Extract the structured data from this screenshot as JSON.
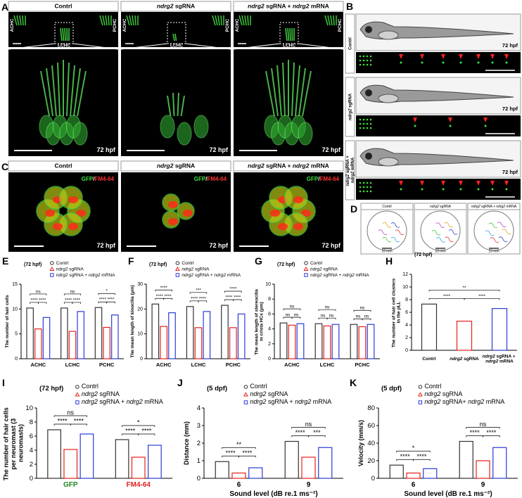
{
  "panels": {
    "A": {
      "letter": "A",
      "columns": [
        "Contrl",
        "ndrg2 sgRNA",
        "ndrg2 sgRNA + ndrg2 mRNA"
      ],
      "labels": [
        "ACHC",
        "PCHC",
        "LCHC"
      ],
      "time": "72 hpf"
    },
    "B": {
      "letter": "B",
      "rows": [
        "Contrl",
        "ndrg2 sgRNA",
        "ndrg2 sgRNA + ndrg2 mRNA"
      ],
      "time": "72 hpf"
    },
    "C": {
      "letter": "C",
      "columns": [
        "Contrl",
        "ndrg2 sgRNA",
        "ndrg2 sgRNA + ndrg2 mRNA"
      ],
      "stain": "GFP/FM4-64",
      "stain_colors": [
        "#3ee03e",
        "#ff3030"
      ],
      "time": "72 hpf"
    },
    "D": {
      "letter": "D",
      "columns": [
        "Contrl",
        "ndrg2 sgRNA",
        "ndrg2 sgRNA + ndrg2 mRNA"
      ],
      "scale": "10 mm"
    }
  },
  "chart_data": [
    {
      "type": "bar",
      "panel": "E",
      "title": "(72 hpf)",
      "ylabel": "The number of hair cells",
      "categories": [
        "ACHC",
        "LCHC",
        "PCHC"
      ],
      "series": [
        {
          "name": "Contrl",
          "color": "#333333",
          "marker": "circle",
          "values": [
            10.2,
            10.2,
            10.3
          ]
        },
        {
          "name": "ndrg2 sgRNA",
          "color": "#e8201a",
          "marker": "triangle",
          "values": [
            6,
            5.5,
            6.3
          ]
        },
        {
          "name": "ndrg2 sgRNA + ndrg2 mRNA",
          "color": "#2a3bd8",
          "marker": "square",
          "values": [
            8.3,
            9.5,
            8.8
          ]
        }
      ],
      "ylim": [
        0,
        15
      ],
      "yticks": [
        0,
        5,
        10,
        15
      ],
      "significance": [
        [
          "****",
          "****",
          "ns"
        ],
        [
          "****",
          "****",
          "ns"
        ],
        [
          "****",
          "****",
          "*"
        ]
      ]
    },
    {
      "type": "bar",
      "panel": "F",
      "title": "(72 hpf)",
      "ylabel": "The mean length of kinocilia (μm)",
      "categories": [
        "ACHC",
        "LCHC",
        "PCHC"
      ],
      "series": [
        {
          "name": "Contrl",
          "color": "#333333",
          "marker": "circle",
          "values": [
            22,
            21,
            21.5
          ]
        },
        {
          "name": "ndrg2 sgRNA",
          "color": "#e8201a",
          "marker": "triangle",
          "values": [
            13,
            12.5,
            12.5
          ]
        },
        {
          "name": "ndrg2 sgRNA + ndrg2 mRNA",
          "color": "#2a3bd8",
          "marker": "square",
          "values": [
            18.5,
            19,
            18
          ]
        }
      ],
      "ylim": [
        0,
        30
      ],
      "yticks": [
        0,
        10,
        20,
        30
      ],
      "significance": [
        [
          "****",
          "****",
          "****"
        ],
        [
          "****",
          "****",
          "***"
        ],
        [
          "****",
          "****",
          "****"
        ]
      ]
    },
    {
      "type": "bar",
      "panel": "G",
      "title": "(72 hpf)",
      "ylabel": "The mean length of stereocilia in crista HCs (μm)",
      "categories": [
        "ACHC",
        "LCHC",
        "PCHC"
      ],
      "series": [
        {
          "name": "Contrl",
          "color": "#333333",
          "marker": "circle",
          "values": [
            4.8,
            4.7,
            4.6
          ]
        },
        {
          "name": "ndrg2 sgRNA",
          "color": "#e8201a",
          "marker": "triangle",
          "values": [
            4.5,
            4.4,
            4.3
          ]
        },
        {
          "name": "ndrg2 sgRNA + ndrg2 mRNA",
          "color": "#2a3bd8",
          "marker": "square",
          "values": [
            4.7,
            4.6,
            4.6
          ]
        }
      ],
      "ylim": [
        0,
        10
      ],
      "yticks": [
        0,
        2,
        4,
        6,
        8,
        10
      ],
      "significance": [
        [
          "ns",
          "ns",
          "ns"
        ],
        [
          "ns",
          "ns",
          "ns"
        ],
        [
          "ns",
          "ns",
          "ns"
        ]
      ]
    },
    {
      "type": "bar",
      "panel": "H",
      "title": "(72 hpf)",
      "ylabel": "The number of hair cell clusters in the pLL",
      "categories": [
        "Contrl",
        "ndrg2 sgRNA",
        "ndrg2 sgRNA + ndrg2 mRNA"
      ],
      "values": [
        7.3,
        4.6,
        6.6
      ],
      "colors": [
        "#333333",
        "#e8201a",
        "#2a3bd8"
      ],
      "ylim": [
        0,
        12
      ],
      "yticks": [
        0,
        2,
        4,
        6,
        8,
        10,
        12
      ],
      "significance": [
        "****",
        "****",
        "**"
      ]
    },
    {
      "type": "bar",
      "panel": "I",
      "title": "(72 hpf)",
      "ylabel": "The number of hair cells per neuromast (3 neuromasts)",
      "categories": [
        "GFP",
        "FM4-64"
      ],
      "category_colors": [
        "#1f8a1f",
        "#e02020"
      ],
      "series": [
        {
          "name": "Contrl",
          "color": "#333333",
          "marker": "circle",
          "values": [
            6.9,
            5.5
          ]
        },
        {
          "name": "ndrg2 sgRNA",
          "color": "#e8201a",
          "marker": "triangle",
          "values": [
            4.1,
            3.0
          ]
        },
        {
          "name": "ndrg2 sgRNA + ndrg2 mRNA",
          "color": "#2a3bd8",
          "marker": "square",
          "values": [
            6.3,
            4.7
          ]
        }
      ],
      "ylim": [
        0,
        10
      ],
      "yticks": [
        0,
        2,
        4,
        6,
        8,
        10
      ],
      "significance": [
        [
          "****",
          "****",
          "ns"
        ],
        [
          "****",
          "****",
          "*"
        ]
      ]
    },
    {
      "type": "bar",
      "panel": "J",
      "title": "(5 dpf)",
      "ylabel": "Distance (mm)",
      "xlabel": "Sound level (dB re.1 ms⁻²)",
      "categories": [
        "6",
        "9"
      ],
      "series": [
        {
          "name": "Contrl",
          "color": "#333333",
          "marker": "circle",
          "values": [
            0.95,
            2.1
          ]
        },
        {
          "name": "ndrg2 sgRNA",
          "color": "#e8201a",
          "marker": "triangle",
          "values": [
            0.3,
            1.2
          ]
        },
        {
          "name": "ndrg2 sgRNA + ndrg2 mRNA",
          "color": "#2a3bd8",
          "marker": "square",
          "values": [
            0.6,
            1.75
          ]
        }
      ],
      "ylim": [
        0,
        4
      ],
      "yticks": [
        0,
        1,
        2,
        3,
        4
      ],
      "significance": [
        [
          "****",
          "****",
          "**"
        ],
        [
          "****",
          "***",
          "ns"
        ]
      ]
    },
    {
      "type": "bar",
      "panel": "K",
      "title": "(5 dpf)",
      "ylabel": "Velocity (mm/s)",
      "xlabel": "Sound level (dB re.1 ms⁻²)",
      "categories": [
        "6",
        "9"
      ],
      "series": [
        {
          "name": "Contrl",
          "color": "#333333",
          "marker": "circle",
          "values": [
            15,
            42
          ]
        },
        {
          "name": "ndrg2 sgRNA",
          "color": "#e8201a",
          "marker": "triangle",
          "values": [
            6,
            20
          ]
        },
        {
          "name": "ndrg2 sgRNA+ ndrg2 mRNA",
          "color": "#2a3bd8",
          "marker": "square",
          "values": [
            11,
            35
          ]
        }
      ],
      "ylim": [
        0,
        80
      ],
      "yticks": [
        0,
        20,
        40,
        60,
        80
      ],
      "significance": [
        [
          "****",
          "****",
          "*"
        ],
        [
          "****",
          "****",
          "ns"
        ]
      ]
    }
  ]
}
